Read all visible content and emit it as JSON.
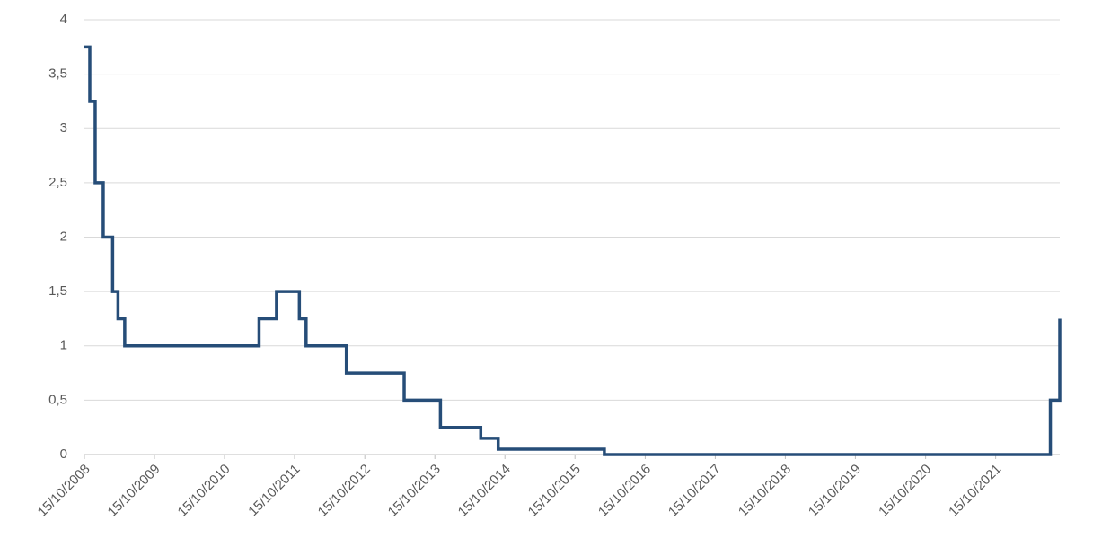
{
  "chart_data": {
    "type": "line",
    "step": true,
    "color": "#264d78",
    "grid": true,
    "x": [
      "15/10/2008",
      "12/11/2008",
      "10/12/2008",
      "21/01/2009",
      "11/03/2009",
      "08/04/2009",
      "13/05/2009",
      "13/04/2011",
      "13/07/2011",
      "09/11/2011",
      "14/12/2011",
      "11/07/2012",
      "08/05/2013",
      "13/11/2013",
      "11/06/2014",
      "10/09/2014",
      "16/03/2016",
      "27/07/2022",
      "14/09/2022"
    ],
    "values": [
      3.75,
      3.25,
      2.5,
      2,
      1.5,
      1.25,
      1,
      1.25,
      1.5,
      1.25,
      1,
      0.75,
      0.5,
      0.25,
      0.15,
      0.05,
      0,
      0.5,
      1.25
    ],
    "xlim": [
      "15/10/2008",
      "14/09/2022"
    ],
    "xticks": [
      "15/10/2008",
      "15/10/2009",
      "15/10/2010",
      "15/10/2011",
      "15/10/2012",
      "15/10/2013",
      "15/10/2014",
      "15/10/2015",
      "15/10/2016",
      "15/10/2017",
      "15/10/2018",
      "15/10/2019",
      "15/10/2020",
      "15/10/2021"
    ],
    "ylim": [
      0,
      4
    ],
    "yticks": [
      0,
      {
        "value": 0.5,
        "label": "0,5"
      },
      1,
      {
        "value": 1.5,
        "label": "1,5"
      },
      2,
      {
        "value": 2.5,
        "label": "2,5"
      },
      3,
      {
        "value": 3.5,
        "label": "3,5"
      },
      4
    ]
  }
}
